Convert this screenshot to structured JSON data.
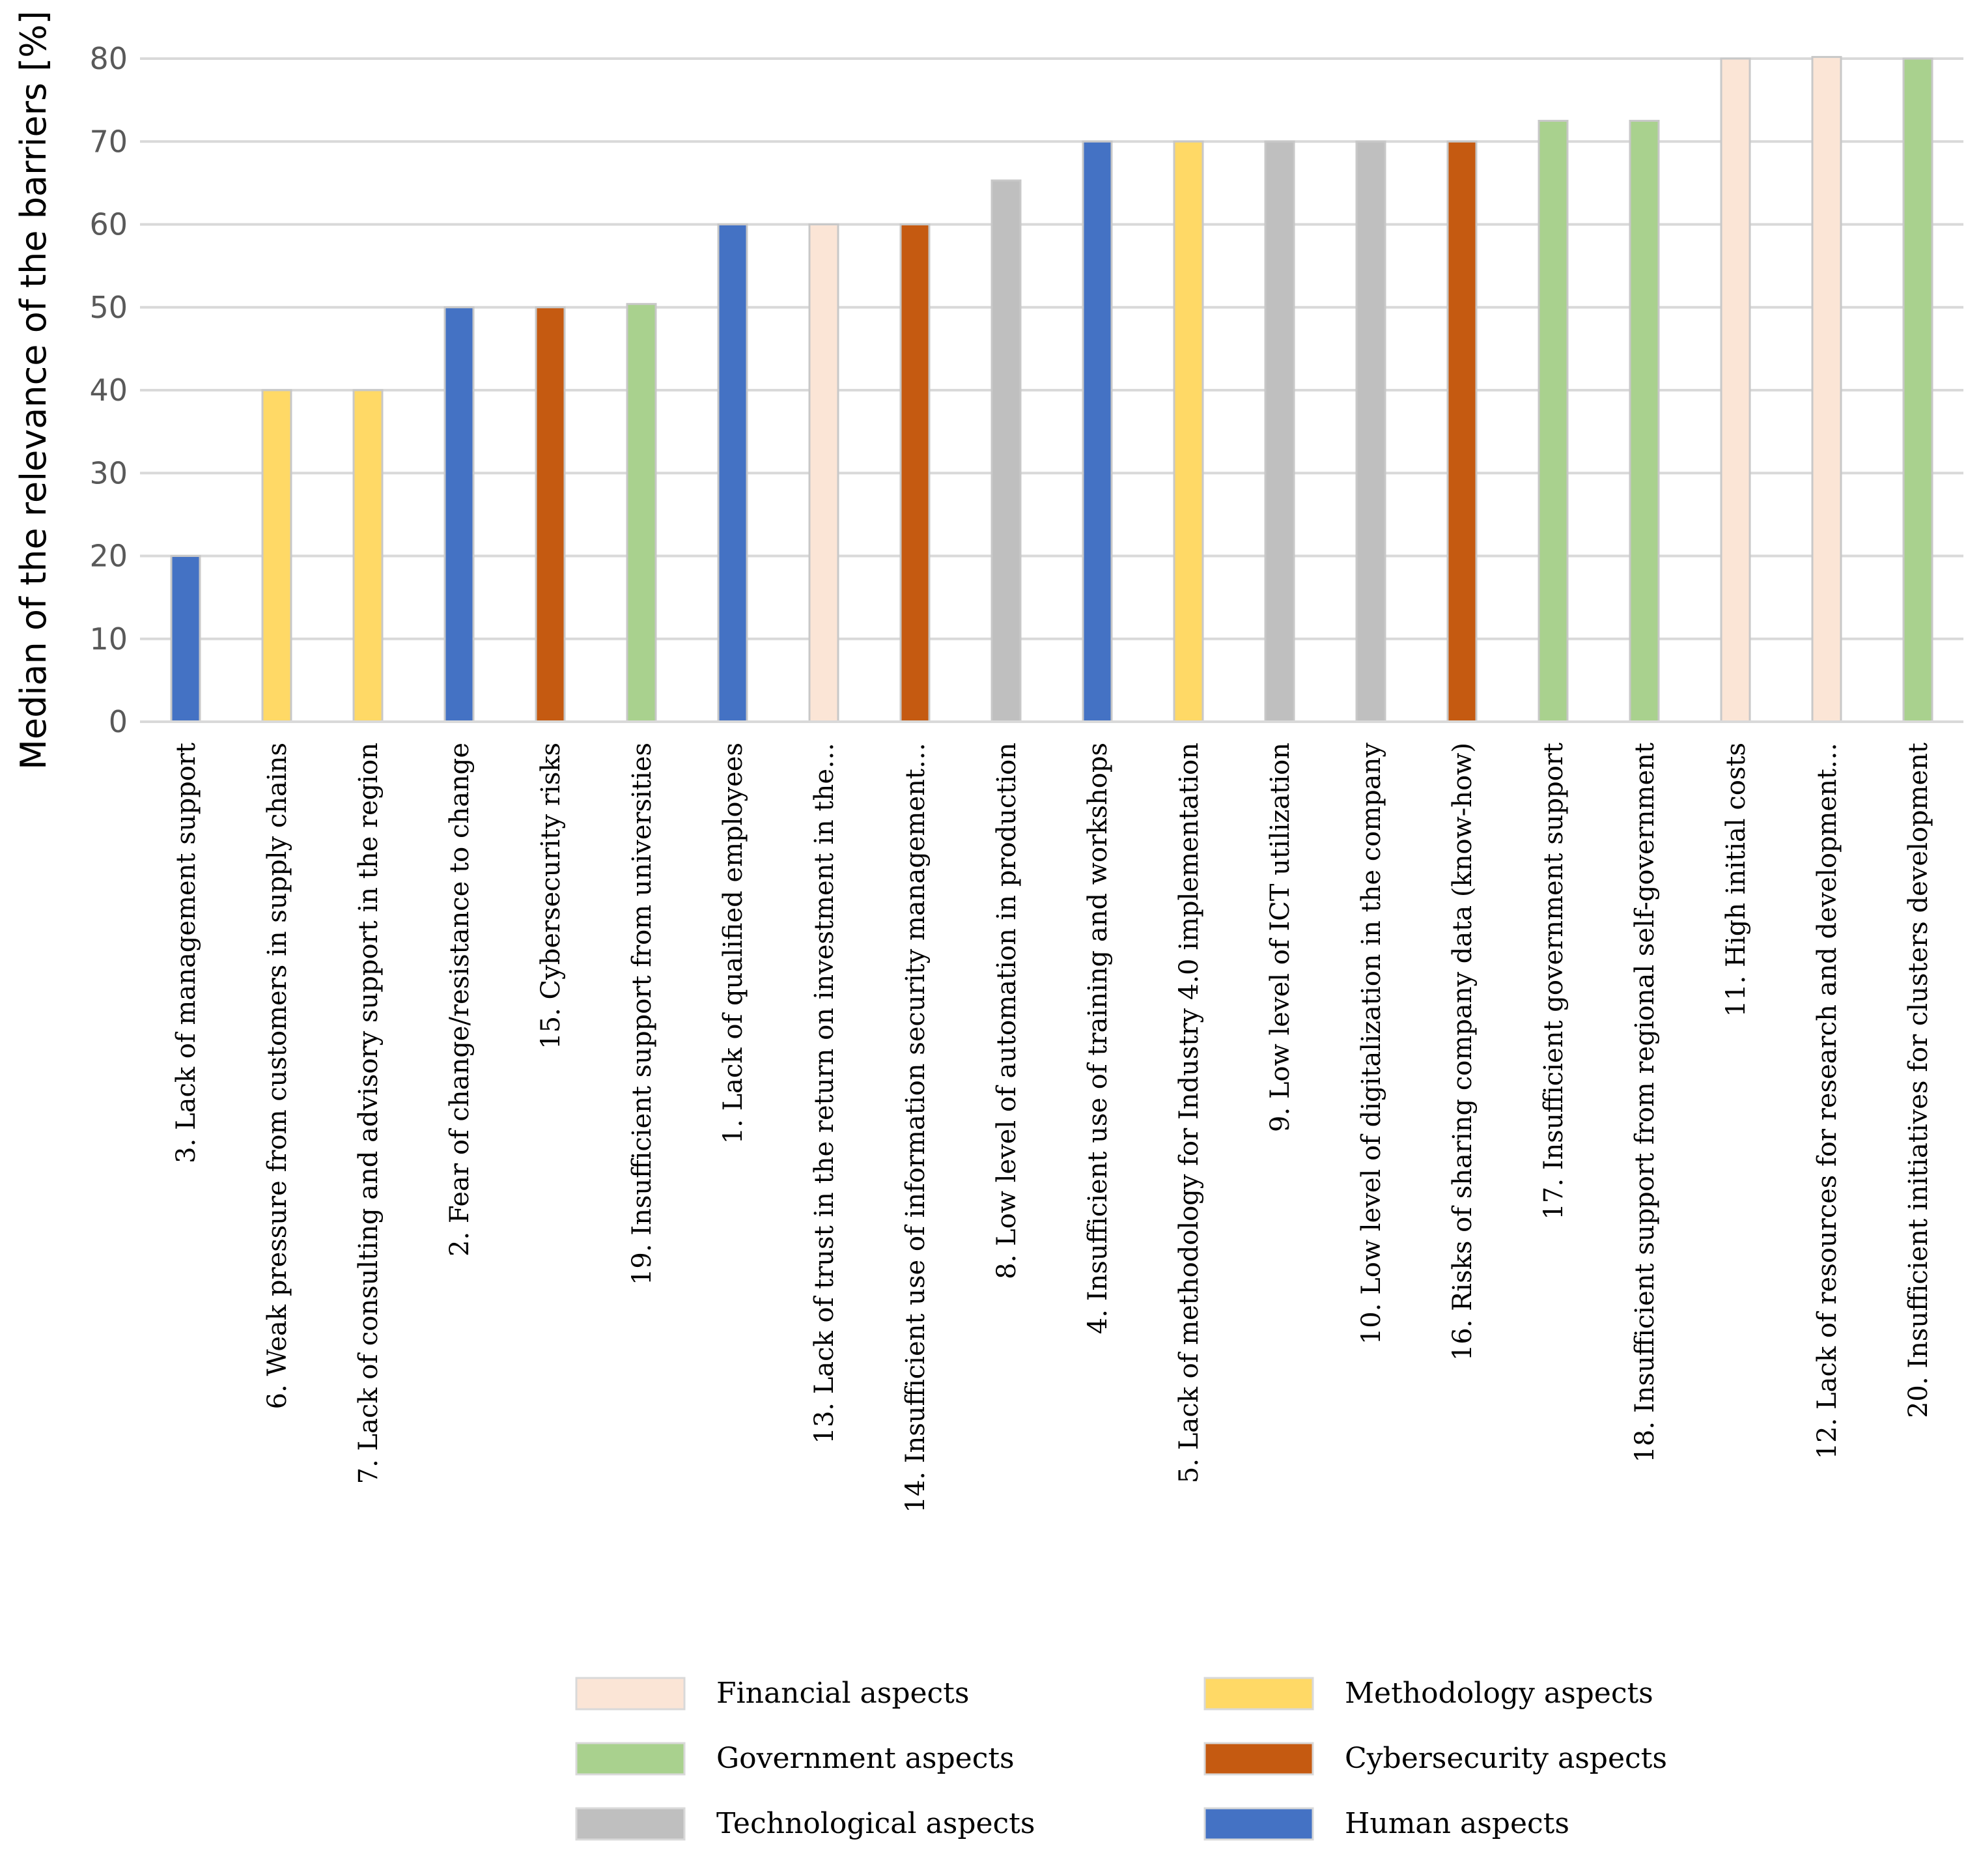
{
  "chart_data": {
    "type": "bar",
    "title": "",
    "xlabel": "",
    "ylabel": "Median of the relevance of the barriers  [%]",
    "ylim": [
      0,
      80
    ],
    "yticks": [
      0,
      10,
      20,
      30,
      40,
      50,
      60,
      70,
      80
    ],
    "grid": true,
    "legend_position": "bottom",
    "categories": [
      "3. Lack of management support",
      "6. Weak pressure from customers in supply chains",
      "7. Lack of consulting and advisory support in the region",
      "2. Fear of change/resistance to change",
      "15. Cybersecurity risks",
      "19. Insufficient support from universities",
      "1. Lack of qualified employees",
      "13. Lack of trust in the return on investment in the…",
      "14. Insufficient use of information security management…",
      "8. Low level of automation in production",
      "4. Insufficient use of training and workshops",
      "5. Lack of methodology for Industry 4.0 implementation",
      "9. Low level of ICT utilization",
      "10. Low level of digitalization in the company",
      "16. Risks of sharing company data (know-how)",
      "17. Insufficient government support",
      "18. Insufficient support from regional self-government",
      "11. High initial costs",
      "12. Lack of resources for research and development…",
      "20. Insufficient initiatives for clusters development"
    ],
    "values": [
      20,
      40,
      40,
      50,
      50,
      50.4,
      60,
      60,
      60,
      65.3,
      70,
      70,
      70,
      70,
      70,
      72.5,
      72.5,
      80,
      80.2,
      80
    ],
    "groups": [
      "Human aspects",
      "Methodology aspects",
      "Methodology aspects",
      "Human aspects",
      "Cybersecurity aspects",
      "Government aspects",
      "Human aspects",
      "Financial aspects",
      "Cybersecurity aspects",
      "Technological aspects",
      "Human aspects",
      "Methodology aspects",
      "Technological aspects",
      "Technological aspects",
      "Cybersecurity aspects",
      "Government aspects",
      "Government aspects",
      "Financial aspects",
      "Financial aspects",
      "Government aspects"
    ],
    "legend": [
      {
        "name": "Financial aspects",
        "color": "#FBE5D6"
      },
      {
        "name": "Methodology aspects",
        "color": "#FFD966"
      },
      {
        "name": "Government aspects",
        "color": "#A9D18E"
      },
      {
        "name": "Cybersecurity aspects",
        "color": "#C55A11"
      },
      {
        "name": "Technological aspects",
        "color": "#BFBFBF"
      },
      {
        "name": "Human aspects",
        "color": "#4472C4"
      }
    ]
  }
}
